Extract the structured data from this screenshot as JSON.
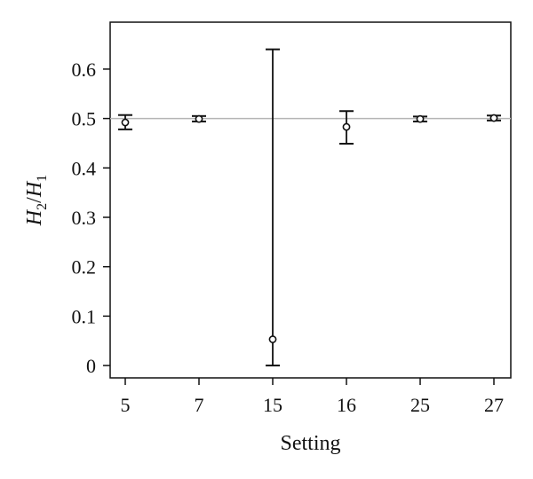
{
  "chart_data": {
    "type": "scatter",
    "title": "",
    "xlabel": "Setting",
    "ylabel": {
      "h2": "H",
      "h2_sub": "2",
      "slash": "/",
      "h1": "H",
      "h1_sub": "1"
    },
    "categories": [
      "5",
      "7",
      "15",
      "16",
      "25",
      "27"
    ],
    "series": [
      {
        "values": [
          0.492,
          0.499,
          0.053,
          0.483,
          0.499,
          0.501
        ],
        "error_low": [
          0.478,
          0.494,
          0.0,
          0.449,
          0.494,
          0.496
        ],
        "error_high": [
          0.507,
          0.505,
          0.64,
          0.515,
          0.504,
          0.506
        ],
        "marker": "open-circle",
        "color": "#111111"
      }
    ],
    "reference_line": {
      "y": 0.5,
      "color": "#b5b5b5"
    },
    "ylim": [
      -0.025,
      0.695
    ],
    "yticks": [
      0,
      0.1,
      0.2,
      0.3,
      0.4,
      0.5,
      0.6
    ],
    "ytick_labels": [
      "0",
      "0.1",
      "0.2",
      "0.3",
      "0.4",
      "0.5",
      "0.6"
    ],
    "grid": false,
    "legend": "none"
  }
}
